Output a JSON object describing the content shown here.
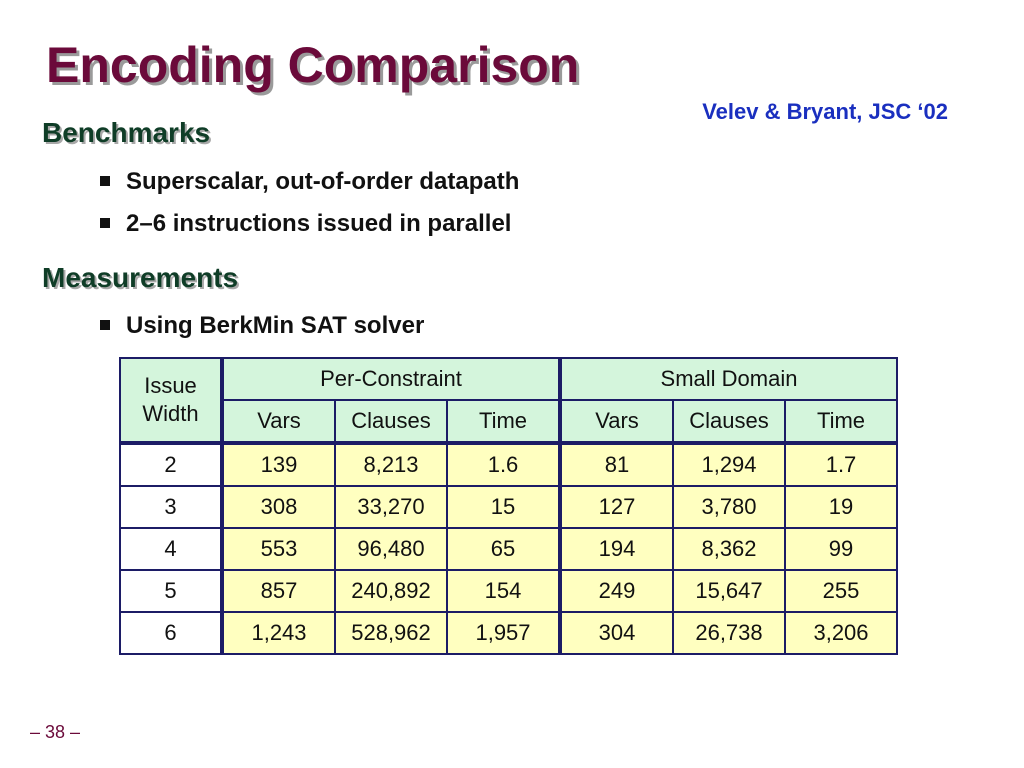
{
  "slide": {
    "title": "Encoding Comparison",
    "citation": "Velev & Bryant, JSC ‘02",
    "page_number": "– 38 –"
  },
  "sections": [
    {
      "heading": "Benchmarks",
      "bullets": [
        "Superscalar, out-of-order datapath",
        "2–6 instructions issued in parallel"
      ]
    },
    {
      "heading": "Measurements",
      "bullets": [
        "Using BerkMin SAT solver"
      ]
    }
  ],
  "table": {
    "corner_header": "Issue Width",
    "groups": [
      "Per-Constraint",
      "Small Domain"
    ],
    "subheaders": [
      "Vars",
      "Clauses",
      "Time",
      "Vars",
      "Clauses",
      "Time"
    ],
    "rows": [
      {
        "width": "2",
        "values": [
          "139",
          "8,213",
          "1.6",
          "81",
          "1,294",
          "1.7"
        ]
      },
      {
        "width": "3",
        "values": [
          "308",
          "33,270",
          "15",
          "127",
          "3,780",
          "19"
        ]
      },
      {
        "width": "4",
        "values": [
          "553",
          "96,480",
          "65",
          "194",
          "8,362",
          "99"
        ]
      },
      {
        "width": "5",
        "values": [
          "857",
          "240,892",
          "154",
          "249",
          "15,647",
          "255"
        ]
      },
      {
        "width": "6",
        "values": [
          "1,243",
          "528,962",
          "1,957",
          "304",
          "26,738",
          "3,206"
        ]
      }
    ]
  },
  "colors": {
    "title": "#6b0a3a",
    "heading": "#0f3d27",
    "citation": "#1a2fbf",
    "header_fill": "#d4f5dc",
    "value_fill": "#ffffc0",
    "border": "#1c1c66"
  }
}
